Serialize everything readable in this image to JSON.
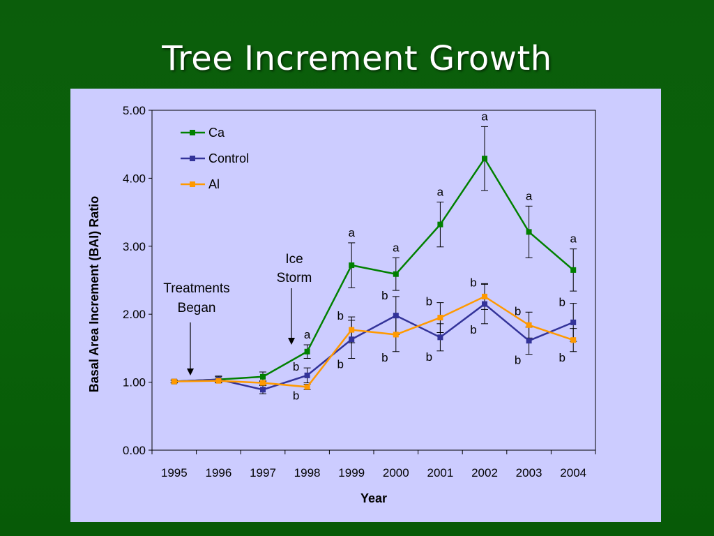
{
  "slide": {
    "title": "Tree Increment Growth"
  },
  "colors": {
    "background": "#0a620a",
    "panel": "#ccccff"
  },
  "chart_data": {
    "type": "line",
    "title": "",
    "xlabel": "Year",
    "ylabel": "Basal Area Increment (BAI) Ratio",
    "ylim": [
      0,
      5
    ],
    "yticks": [
      "0.00",
      "1.00",
      "2.00",
      "3.00",
      "4.00",
      "5.00"
    ],
    "categories": [
      "1995",
      "1996",
      "1997",
      "1998",
      "1999",
      "2000",
      "2001",
      "2002",
      "2003",
      "2004"
    ],
    "legend_position": "top-left",
    "grid": false,
    "series": [
      {
        "name": "Ca",
        "color": "#008000",
        "values": [
          1.01,
          1.04,
          1.08,
          1.45,
          2.72,
          2.59,
          3.32,
          4.29,
          3.21,
          2.65
        ],
        "errors": [
          0.02,
          0.04,
          0.07,
          0.1,
          0.33,
          0.24,
          0.33,
          0.47,
          0.38,
          0.31
        ],
        "labels": [
          "",
          "",
          "",
          "a",
          "a",
          "a",
          "a",
          "a",
          "a",
          "a"
        ]
      },
      {
        "name": "Control",
        "color": "#333399",
        "values": [
          1.01,
          1.04,
          0.89,
          1.1,
          1.63,
          1.98,
          1.66,
          2.15,
          1.61,
          1.88
        ],
        "errors": [
          0.02,
          0.05,
          0.06,
          0.11,
          0.28,
          0.28,
          0.2,
          0.29,
          0.2,
          0.28
        ],
        "labels": [
          "",
          "",
          "",
          "b",
          "b",
          "b",
          "b",
          "b",
          "b",
          "b"
        ]
      },
      {
        "name": "Al",
        "color": "#ff9900",
        "values": [
          1.01,
          1.02,
          0.99,
          0.93,
          1.77,
          1.7,
          1.95,
          2.26,
          1.84,
          1.62
        ],
        "errors": [
          0.02,
          0.03,
          0.03,
          0.04,
          0.19,
          0.25,
          0.22,
          0.19,
          0.19,
          0.17
        ],
        "labels": [
          "",
          "",
          "",
          "b",
          "b",
          "b",
          "b",
          "b",
          "b",
          "b"
        ]
      }
    ],
    "annotations": [
      {
        "text": [
          "Treatments",
          "Began"
        ],
        "year": "1995"
      },
      {
        "text": [
          "Ice",
          "Storm"
        ],
        "year": "1998"
      }
    ]
  }
}
